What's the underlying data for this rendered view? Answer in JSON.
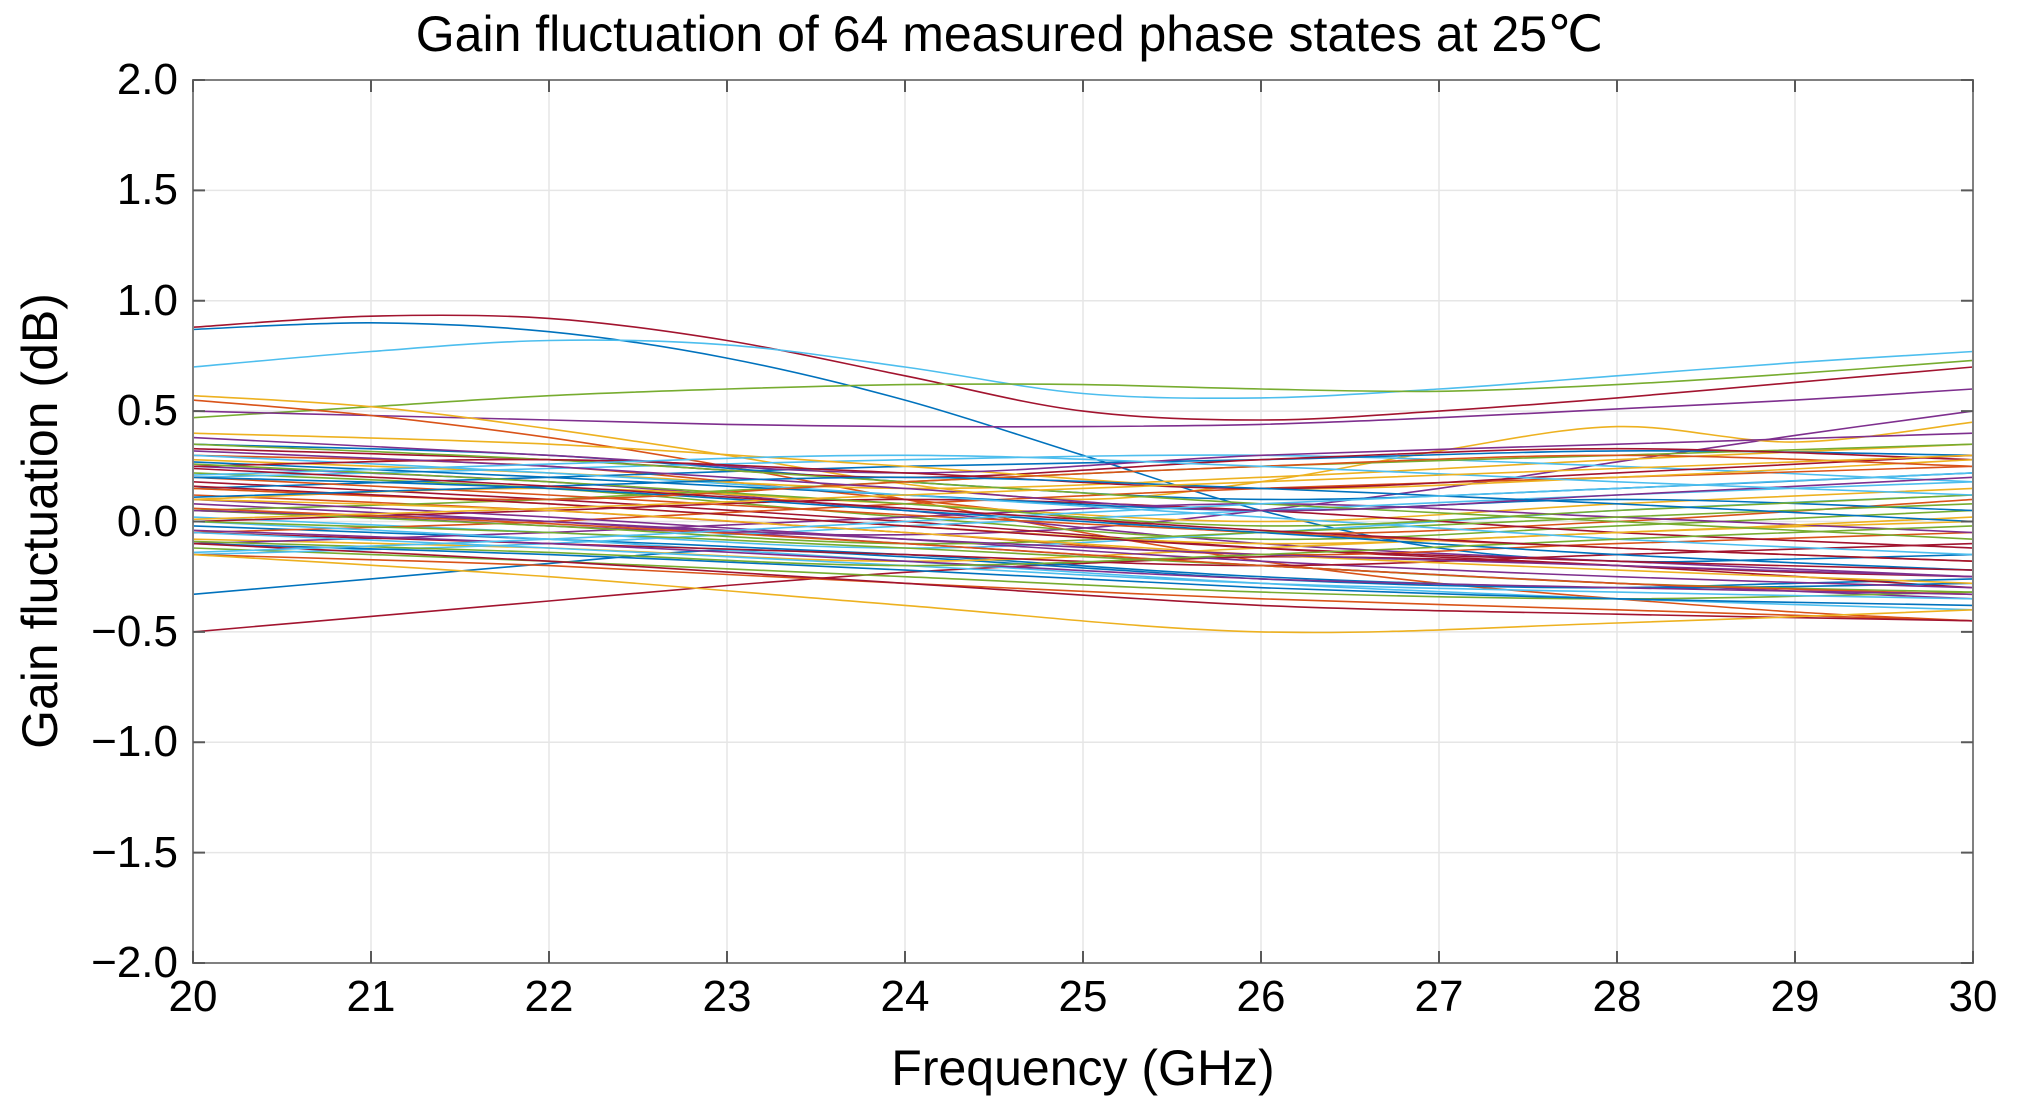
{
  "chart_data": {
    "type": "line",
    "title": "Gain fluctuation of 64 measured phase states at 25℃",
    "xlabel": "Frequency (GHz)",
    "ylabel": "Gain fluctuation (dB)",
    "xlim": [
      20,
      30
    ],
    "ylim": [
      -2.0,
      2.0
    ],
    "x_ticks": [
      20,
      21,
      22,
      23,
      24,
      25,
      26,
      27,
      28,
      29,
      30
    ],
    "x_tick_labels": [
      "20",
      "21",
      "22",
      "23",
      "24",
      "25",
      "26",
      "27",
      "28",
      "29",
      "30"
    ],
    "y_ticks": [
      -2.0,
      -1.5,
      -1.0,
      -0.5,
      0.0,
      0.5,
      1.0,
      1.5,
      2.0
    ],
    "y_tick_labels": [
      "−2.0",
      "−1.5",
      "−1.0",
      "−0.5",
      "0.0",
      "0.5",
      "1.0",
      "1.5",
      "2.0"
    ],
    "grid": true,
    "legend": false,
    "series_count": 64,
    "palette": [
      "#0072BD",
      "#D95319",
      "#EDB120",
      "#7E2F8E",
      "#77AC30",
      "#4DBEEE",
      "#A2142F"
    ],
    "grid_color": "#e6e6e6",
    "axis_color": "#808080",
    "tick_color": "#595959",
    "background": "#ffffff",
    "series": [
      {
        "c": 6,
        "x": [
          20,
          21,
          22,
          23,
          24,
          25,
          26,
          27,
          28,
          29,
          30
        ],
        "y": [
          0.88,
          0.93,
          0.92,
          0.82,
          0.66,
          0.5,
          0.46,
          0.5,
          0.56,
          0.63,
          0.7
        ]
      },
      {
        "c": 0,
        "x": [
          20,
          21,
          22,
          23,
          24,
          25,
          26,
          27,
          28,
          29,
          30
        ],
        "y": [
          0.87,
          0.9,
          0.86,
          0.74,
          0.55,
          0.3,
          0.05,
          -0.12,
          -0.18,
          -0.17,
          -0.15
        ]
      },
      {
        "c": 5,
        "x": [
          20,
          21,
          22,
          23,
          24,
          25,
          26,
          27,
          28,
          29,
          30
        ],
        "y": [
          0.7,
          0.77,
          0.82,
          0.8,
          0.7,
          0.58,
          0.56,
          0.6,
          0.66,
          0.72,
          0.77
        ]
      },
      {
        "c": 4,
        "x": [
          20,
          21,
          22,
          23,
          24,
          25,
          26,
          27,
          28,
          29,
          30
        ],
        "y": [
          0.47,
          0.52,
          0.57,
          0.6,
          0.62,
          0.62,
          0.6,
          0.59,
          0.62,
          0.67,
          0.73
        ]
      },
      {
        "c": 3,
        "x": [
          20,
          21,
          22,
          23,
          24,
          25,
          26,
          27,
          28,
          29,
          30
        ],
        "y": [
          0.5,
          0.48,
          0.46,
          0.44,
          0.43,
          0.43,
          0.44,
          0.47,
          0.51,
          0.55,
          0.6
        ]
      },
      {
        "c": 3,
        "x": [
          20,
          21,
          22,
          23,
          24,
          25,
          26,
          27,
          28,
          29,
          30
        ],
        "y": [
          0.05,
          0.02,
          -0.02,
          -0.05,
          -0.06,
          -0.03,
          0.05,
          0.15,
          0.27,
          0.39,
          0.5
        ]
      },
      {
        "c": 2,
        "x": [
          20,
          21,
          22,
          23,
          24,
          25,
          26,
          27,
          28,
          29,
          30
        ],
        "y": [
          0.57,
          0.52,
          0.42,
          0.3,
          0.17,
          0.1,
          0.18,
          0.32,
          0.43,
          0.36,
          0.45
        ]
      },
      {
        "c": 1,
        "x": [
          20,
          21,
          22,
          23,
          24,
          25,
          26,
          27,
          28,
          29,
          30
        ],
        "y": [
          0.55,
          0.48,
          0.38,
          0.25,
          0.1,
          -0.05,
          -0.18,
          -0.28,
          -0.35,
          -0.41,
          -0.45
        ]
      },
      {
        "c": 6,
        "x": [
          20,
          21,
          22,
          23,
          24,
          25,
          26,
          27,
          28,
          29,
          30
        ],
        "y": [
          -0.5,
          -0.43,
          -0.36,
          -0.29,
          -0.23,
          -0.19,
          -0.16,
          -0.17,
          -0.2,
          -0.23,
          -0.25
        ]
      },
      {
        "c": 0,
        "x": [
          20,
          21,
          22,
          23,
          24,
          25,
          26,
          27,
          28,
          29,
          30
        ],
        "y": [
          -0.33,
          -0.26,
          -0.19,
          -0.13,
          -0.16,
          -0.21,
          -0.26,
          -0.29,
          -0.3,
          -0.28,
          -0.26
        ]
      },
      {
        "c": 0,
        "x": [
          20,
          22,
          24,
          26,
          28,
          30
        ],
        "y": [
          0.35,
          0.3,
          0.18,
          0.1,
          0.15,
          0.22
        ]
      },
      {
        "c": 1,
        "x": [
          20,
          22,
          24,
          26,
          28,
          30
        ],
        "y": [
          0.3,
          0.25,
          0.1,
          -0.05,
          0.0,
          0.1
        ]
      },
      {
        "c": 2,
        "x": [
          20,
          22,
          24,
          26,
          28,
          30
        ],
        "y": [
          0.28,
          0.22,
          0.15,
          0.2,
          0.28,
          0.35
        ]
      },
      {
        "c": 3,
        "x": [
          20,
          22,
          24,
          26,
          28,
          30
        ],
        "y": [
          0.25,
          0.18,
          0.05,
          -0.1,
          -0.18,
          -0.25
        ]
      },
      {
        "c": 4,
        "x": [
          20,
          22,
          24,
          26,
          28,
          30
        ],
        "y": [
          0.22,
          0.15,
          0.02,
          -0.08,
          -0.02,
          0.05
        ]
      },
      {
        "c": 5,
        "x": [
          20,
          22,
          24,
          26,
          28,
          30
        ],
        "y": [
          0.2,
          0.24,
          0.28,
          0.3,
          0.25,
          0.18
        ]
      },
      {
        "c": 6,
        "x": [
          20,
          22,
          24,
          26,
          28,
          30
        ],
        "y": [
          0.18,
          0.1,
          0.0,
          -0.12,
          -0.2,
          -0.3
        ]
      },
      {
        "c": 0,
        "x": [
          20,
          22,
          24,
          26,
          28,
          30
        ],
        "y": [
          0.15,
          0.2,
          0.25,
          0.28,
          0.32,
          0.3
        ]
      },
      {
        "c": 1,
        "x": [
          20,
          22,
          24,
          26,
          28,
          30
        ],
        "y": [
          0.12,
          0.05,
          -0.05,
          -0.15,
          -0.1,
          -0.05
        ]
      },
      {
        "c": 2,
        "x": [
          20,
          22,
          24,
          26,
          28,
          30
        ],
        "y": [
          0.1,
          0.15,
          0.08,
          0.0,
          0.08,
          0.15
        ]
      },
      {
        "c": 3,
        "x": [
          20,
          22,
          24,
          26,
          28,
          30
        ],
        "y": [
          0.08,
          0.0,
          -0.1,
          -0.2,
          -0.28,
          -0.35
        ]
      },
      {
        "c": 4,
        "x": [
          20,
          22,
          24,
          26,
          28,
          30
        ],
        "y": [
          0.05,
          0.1,
          0.18,
          0.25,
          0.3,
          0.35
        ]
      },
      {
        "c": 5,
        "x": [
          20,
          22,
          24,
          26,
          28,
          30
        ],
        "y": [
          0.02,
          -0.05,
          -0.12,
          -0.05,
          0.05,
          0.12
        ]
      },
      {
        "c": 6,
        "x": [
          20,
          22,
          24,
          26,
          28,
          30
        ],
        "y": [
          0.0,
          0.05,
          0.1,
          0.05,
          -0.05,
          -0.12
        ]
      },
      {
        "c": 0,
        "x": [
          20,
          22,
          24,
          26,
          28,
          30
        ],
        "y": [
          -0.02,
          -0.08,
          -0.15,
          -0.25,
          -0.3,
          -0.28
        ]
      },
      {
        "c": 1,
        "x": [
          20,
          22,
          24,
          26,
          28,
          30
        ],
        "y": [
          -0.05,
          0.0,
          0.08,
          0.15,
          0.2,
          0.25
        ]
      },
      {
        "c": 2,
        "x": [
          20,
          22,
          24,
          26,
          28,
          30
        ],
        "y": [
          -0.08,
          -0.12,
          -0.18,
          -0.12,
          -0.05,
          0.0
        ]
      },
      {
        "c": 3,
        "x": [
          20,
          22,
          24,
          26,
          28,
          30
        ],
        "y": [
          -0.1,
          -0.05,
          0.02,
          0.08,
          0.02,
          -0.05
        ]
      },
      {
        "c": 4,
        "x": [
          20,
          22,
          24,
          26,
          28,
          30
        ],
        "y": [
          -0.12,
          -0.18,
          -0.25,
          -0.32,
          -0.35,
          -0.32
        ]
      },
      {
        "c": 5,
        "x": [
          20,
          22,
          24,
          26,
          28,
          30
        ],
        "y": [
          -0.15,
          -0.1,
          -0.02,
          0.05,
          0.12,
          0.18
        ]
      },
      {
        "c": 6,
        "x": [
          20,
          22,
          24,
          26,
          28,
          30
        ],
        "y": [
          0.33,
          0.28,
          0.2,
          0.28,
          0.33,
          0.28
        ]
      },
      {
        "c": 0,
        "x": [
          20,
          22,
          24,
          26,
          28,
          30
        ],
        "y": [
          0.27,
          0.2,
          0.12,
          0.05,
          0.1,
          0.05
        ]
      },
      {
        "c": 1,
        "x": [
          20,
          22,
          24,
          26,
          28,
          30
        ],
        "y": [
          0.2,
          0.12,
          0.03,
          -0.05,
          -0.12,
          -0.18
        ]
      },
      {
        "c": 2,
        "x": [
          20,
          22,
          24,
          26,
          28,
          30
        ],
        "y": [
          0.15,
          0.08,
          -0.02,
          -0.1,
          -0.05,
          0.02
        ]
      },
      {
        "c": 3,
        "x": [
          20,
          22,
          24,
          26,
          28,
          30
        ],
        "y": [
          0.1,
          0.02,
          -0.08,
          -0.18,
          -0.25,
          -0.3
        ]
      },
      {
        "c": 4,
        "x": [
          20,
          22,
          24,
          26,
          28,
          30
        ],
        "y": [
          0.05,
          -0.02,
          -0.1,
          -0.05,
          0.02,
          0.08
        ]
      },
      {
        "c": 5,
        "x": [
          20,
          22,
          24,
          26,
          28,
          30
        ],
        "y": [
          0.0,
          -0.08,
          -0.18,
          -0.28,
          -0.35,
          -0.4
        ]
      },
      {
        "c": 6,
        "x": [
          20,
          22,
          24,
          26,
          28,
          30
        ],
        "y": [
          -0.05,
          -0.1,
          -0.15,
          -0.2,
          -0.15,
          -0.1
        ]
      },
      {
        "c": 0,
        "x": [
          20,
          22,
          24,
          26,
          28,
          30
        ],
        "y": [
          -0.1,
          -0.15,
          -0.22,
          -0.3,
          -0.35,
          -0.38
        ]
      },
      {
        "c": 1,
        "x": [
          20,
          22,
          24,
          26,
          28,
          30
        ],
        "y": [
          -0.15,
          -0.2,
          -0.28,
          -0.35,
          -0.4,
          -0.45
        ]
      },
      {
        "c": 2,
        "x": [
          20,
          22,
          24,
          26,
          28,
          30
        ],
        "y": [
          0.4,
          0.35,
          0.25,
          0.15,
          0.2,
          0.28
        ]
      },
      {
        "c": 3,
        "x": [
          20,
          22,
          24,
          26,
          28,
          30
        ],
        "y": [
          0.38,
          0.3,
          0.22,
          0.3,
          0.35,
          0.4
        ]
      },
      {
        "c": 4,
        "x": [
          20,
          22,
          24,
          26,
          28,
          30
        ],
        "y": [
          0.35,
          0.28,
          0.18,
          0.08,
          0.0,
          -0.08
        ]
      },
      {
        "c": 5,
        "x": [
          20,
          22,
          24,
          26,
          28,
          30
        ],
        "y": [
          0.3,
          0.22,
          0.12,
          0.02,
          -0.08,
          -0.15
        ]
      },
      {
        "c": 6,
        "x": [
          20,
          22,
          24,
          26,
          28,
          30
        ],
        "y": [
          0.25,
          0.28,
          0.22,
          0.15,
          0.22,
          0.3
        ]
      },
      {
        "c": 0,
        "x": [
          20,
          22,
          24,
          26,
          28,
          30
        ],
        "y": [
          0.2,
          0.15,
          0.05,
          -0.05,
          -0.15,
          -0.22
        ]
      },
      {
        "c": 1,
        "x": [
          20,
          22,
          24,
          26,
          28,
          30
        ],
        "y": [
          0.15,
          0.1,
          0.18,
          0.25,
          0.3,
          0.25
        ]
      },
      {
        "c": 2,
        "x": [
          20,
          22,
          24,
          26,
          28,
          30
        ],
        "y": [
          0.1,
          0.05,
          -0.05,
          -0.15,
          -0.22,
          -0.28
        ]
      },
      {
        "c": 3,
        "x": [
          20,
          22,
          24,
          26,
          28,
          30
        ],
        "y": [
          0.05,
          0.0,
          -0.08,
          -0.15,
          -0.2,
          -0.25
        ]
      },
      {
        "c": 4,
        "x": [
          20,
          22,
          24,
          26,
          28,
          30
        ],
        "y": [
          0.0,
          -0.05,
          -0.12,
          -0.2,
          -0.28,
          -0.32
        ]
      },
      {
        "c": 5,
        "x": [
          20,
          22,
          24,
          26,
          28,
          30
        ],
        "y": [
          -0.05,
          -0.12,
          -0.2,
          -0.28,
          -0.32,
          -0.35
        ]
      },
      {
        "c": 6,
        "x": [
          20,
          22,
          24,
          26,
          28,
          30
        ],
        "y": [
          -0.1,
          -0.18,
          -0.28,
          -0.38,
          -0.42,
          -0.45
        ]
      },
      {
        "c": 2,
        "x": [
          20,
          22,
          24,
          26,
          28,
          30
        ],
        "y": [
          -0.15,
          -0.25,
          -0.38,
          -0.5,
          -0.46,
          -0.4
        ]
      },
      {
        "c": 3,
        "x": [
          20,
          22,
          24,
          26,
          28,
          30
        ],
        "y": [
          0.32,
          0.25,
          0.15,
          0.05,
          0.12,
          0.2
        ]
      },
      {
        "c": 4,
        "x": [
          20,
          22,
          24,
          26,
          28,
          30
        ],
        "y": [
          0.26,
          0.18,
          0.08,
          -0.02,
          0.05,
          0.12
        ]
      },
      {
        "c": 5,
        "x": [
          20,
          22,
          24,
          26,
          28,
          30
        ],
        "y": [
          0.21,
          0.26,
          0.3,
          0.25,
          0.18,
          0.12
        ]
      },
      {
        "c": 6,
        "x": [
          20,
          22,
          24,
          26,
          28,
          30
        ],
        "y": [
          0.16,
          0.08,
          -0.02,
          -0.12,
          -0.18,
          -0.22
        ]
      },
      {
        "c": 0,
        "x": [
          20,
          22,
          24,
          26,
          28,
          30
        ],
        "y": [
          0.11,
          0.16,
          0.2,
          0.15,
          0.08,
          0.0
        ]
      },
      {
        "c": 1,
        "x": [
          20,
          22,
          24,
          26,
          28,
          30
        ],
        "y": [
          0.06,
          -0.01,
          -0.1,
          -0.2,
          -0.28,
          -0.33
        ]
      },
      {
        "c": 2,
        "x": [
          20,
          22,
          24,
          26,
          28,
          30
        ],
        "y": [
          0.01,
          0.06,
          0.12,
          0.18,
          0.24,
          0.3
        ]
      },
      {
        "c": 3,
        "x": [
          20,
          22,
          24,
          26,
          28,
          30
        ],
        "y": [
          -0.04,
          -0.1,
          -0.18,
          -0.26,
          -0.3,
          -0.33
        ]
      },
      {
        "c": 4,
        "x": [
          20,
          22,
          24,
          26,
          28,
          30
        ],
        "y": [
          -0.09,
          -0.14,
          -0.2,
          -0.15,
          -0.08,
          -0.02
        ]
      },
      {
        "c": 5,
        "x": [
          20,
          22,
          24,
          26,
          28,
          30
        ],
        "y": [
          -0.14,
          -0.08,
          0.0,
          0.08,
          0.15,
          0.22
        ]
      },
      {
        "c": 6,
        "x": [
          20,
          22,
          24,
          26,
          28,
          30
        ],
        "y": [
          0.24,
          0.16,
          0.06,
          -0.04,
          -0.12,
          -0.18
        ]
      }
    ]
  }
}
